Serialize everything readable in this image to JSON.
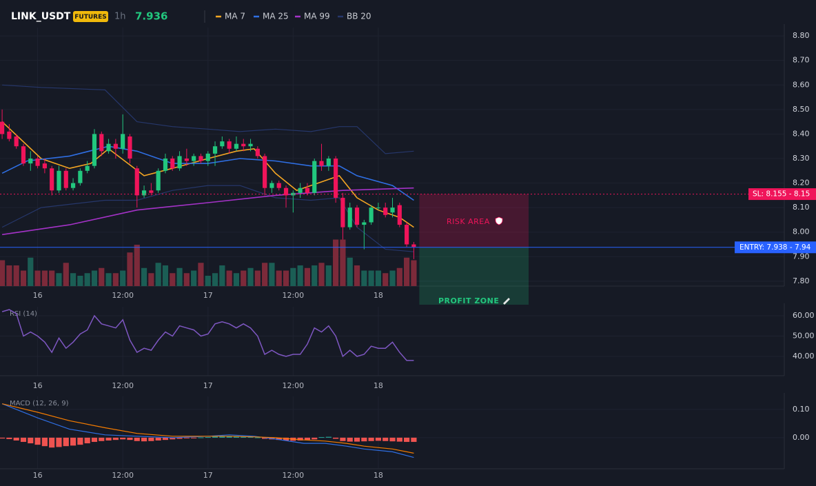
{
  "chart_data": [
    {
      "type": "candlestick",
      "symbol": "LINK_USDT",
      "market": "FUTURES",
      "interval": "1h",
      "last_price": 7.936,
      "xlim": [
        -0.3,
        110.2
      ],
      "xticks": [
        {
          "value": 5,
          "label": "16"
        },
        {
          "value": 17,
          "label": "12:00"
        },
        {
          "value": 29,
          "label": "17"
        },
        {
          "value": 41,
          "label": "12:00"
        },
        {
          "value": 53,
          "label": "18"
        }
      ],
      "ylim": [
        7.78,
        8.834
      ],
      "yticks": [
        {
          "value": 8.8,
          "label": "8.80"
        },
        {
          "value": 8.7,
          "label": "8.70"
        },
        {
          "value": 8.6,
          "label": "8.60"
        },
        {
          "value": 8.5,
          "label": "8.50"
        },
        {
          "value": 8.4,
          "label": "8.40"
        },
        {
          "value": 8.3,
          "label": "8.30"
        },
        {
          "value": 8.2,
          "label": "8.20"
        },
        {
          "value": 8.1,
          "label": "8.10"
        },
        {
          "value": 8,
          "label": "8.00"
        },
        {
          "value": 7.9,
          "label": "7.90"
        },
        {
          "value": 7.8,
          "label": "7.80"
        }
      ],
      "grid": true,
      "up_color": "#22c77e",
      "down_color": "#f0145a",
      "open": [
        8.45,
        8.41,
        8.39,
        8.35,
        8.28,
        8.3,
        8.28,
        8.26,
        8.17,
        8.25,
        8.18,
        8.2,
        8.25,
        8.27,
        8.4,
        8.33,
        8.36,
        8.34,
        8.39,
        8.26,
        8.15,
        8.17,
        8.17,
        8.25,
        8.3,
        8.26,
        8.3,
        8.29,
        8.31,
        8.29,
        8.32,
        8.35,
        8.37,
        8.34,
        8.36,
        8.35,
        8.34,
        8.31,
        8.18,
        8.2,
        8.18,
        8.15,
        8.16,
        8.18,
        8.16,
        8.29,
        8.27,
        8.3,
        8.14,
        8.02,
        8.1,
        8.03,
        8.04,
        8.1,
        8.1,
        8.08,
        8.11,
        8.03,
        7.95
      ],
      "high": [
        8.5,
        8.44,
        8.4,
        8.36,
        8.33,
        8.31,
        8.3,
        8.27,
        8.27,
        8.26,
        8.22,
        8.26,
        8.29,
        8.42,
        8.41,
        8.38,
        8.38,
        8.48,
        8.4,
        8.27,
        8.19,
        8.2,
        8.26,
        8.32,
        8.31,
        8.33,
        8.34,
        8.32,
        8.32,
        8.33,
        8.37,
        8.39,
        8.38,
        8.39,
        8.38,
        8.38,
        8.35,
        8.32,
        8.21,
        8.21,
        8.19,
        8.17,
        8.2,
        8.2,
        8.3,
        8.36,
        8.31,
        8.31,
        8.16,
        8.12,
        8.11,
        8.05,
        8.11,
        8.12,
        8.12,
        8.14,
        8.12,
        8.04,
        7.96
      ],
      "low": [
        8.38,
        8.37,
        8.34,
        8.27,
        8.25,
        8.26,
        8.24,
        8.15,
        8.16,
        8.17,
        8.17,
        8.19,
        8.24,
        8.26,
        8.31,
        8.32,
        8.3,
        8.32,
        8.28,
        8.1,
        8.14,
        8.15,
        8.16,
        8.24,
        8.25,
        8.25,
        8.27,
        8.27,
        8.28,
        8.27,
        8.27,
        8.34,
        8.32,
        8.33,
        8.33,
        8.33,
        8.3,
        8.15,
        8.16,
        8.17,
        8.1,
        8.08,
        8.14,
        8.15,
        8.15,
        8.25,
        8.25,
        8.12,
        7.97,
        8.01,
        8.02,
        7.93,
        8.03,
        8.09,
        8.06,
        8.06,
        8.02,
        7.94,
        7.89
      ],
      "close": [
        8.4,
        8.38,
        8.35,
        8.28,
        8.3,
        8.27,
        8.26,
        8.17,
        8.25,
        8.18,
        8.2,
        8.25,
        8.27,
        8.4,
        8.33,
        8.36,
        8.34,
        8.4,
        8.3,
        8.15,
        8.17,
        8.16,
        8.25,
        8.3,
        8.26,
        8.31,
        8.29,
        8.31,
        8.29,
        8.32,
        8.35,
        8.37,
        8.34,
        8.36,
        8.35,
        8.36,
        8.31,
        8.18,
        8.2,
        8.18,
        8.15,
        8.16,
        8.18,
        8.16,
        8.29,
        8.27,
        8.3,
        8.14,
        8.02,
        8.1,
        8.03,
        8.04,
        8.1,
        8.1,
        8.07,
        8.1,
        8.03,
        7.95,
        7.94
      ],
      "volume": {
        "ylim": [
          0,
          100
        ],
        "up_color": "#1b5e55",
        "down_color": "#7c2a3a",
        "values": [
          50,
          40,
          40,
          30,
          55,
          30,
          30,
          30,
          25,
          45,
          25,
          20,
          25,
          30,
          35,
          25,
          25,
          30,
          65,
          80,
          35,
          25,
          45,
          40,
          25,
          35,
          25,
          30,
          45,
          20,
          25,
          40,
          30,
          25,
          30,
          35,
          30,
          45,
          45,
          30,
          30,
          35,
          40,
          35,
          40,
          45,
          40,
          90,
          90,
          55,
          40,
          30,
          30,
          30,
          25,
          30,
          35,
          55,
          50
        ]
      },
      "series": [
        {
          "name": "MA 7",
          "color": "#f5a623",
          "x": [
            0,
            5.5,
            9.5,
            12.5,
            15,
            20,
            24,
            29,
            33,
            35.5,
            38.5,
            41.5,
            44.5,
            47.5,
            50,
            53,
            56,
            58
          ],
          "values": [
            8.45,
            8.3,
            8.26,
            8.28,
            8.34,
            8.23,
            8.26,
            8.3,
            8.33,
            8.34,
            8.24,
            8.17,
            8.2,
            8.23,
            8.14,
            8.09,
            8.06,
            8.02
          ]
        },
        {
          "name": "MA 25",
          "color": "#2f6fe4",
          "x": [
            0,
            3.5,
            9.5,
            15,
            19,
            24,
            29,
            33.5,
            38.5,
            43.5,
            47.5,
            50,
            55,
            58
          ],
          "values": [
            8.24,
            8.29,
            8.31,
            8.35,
            8.33,
            8.28,
            8.28,
            8.3,
            8.29,
            8.27,
            8.27,
            8.23,
            8.19,
            8.13
          ]
        },
        {
          "name": "MA 99",
          "color": "#a532c8",
          "x": [
            0,
            9.5,
            19,
            29,
            38.5,
            48,
            58
          ],
          "values": [
            7.99,
            8.03,
            8.09,
            8.12,
            8.15,
            8.17,
            8.18
          ]
        }
      ],
      "bands": [
        {
          "name": "BB 20",
          "color": "#26376b",
          "x": [
            0,
            5.5,
            14.5,
            19,
            24,
            29,
            33.5,
            38.5,
            43.5,
            47.5,
            50,
            54,
            58
          ],
          "upper": [
            8.6,
            8.59,
            8.58,
            8.45,
            8.43,
            8.42,
            8.41,
            8.42,
            8.41,
            8.43,
            8.43,
            8.32,
            8.33
          ],
          "lower": [
            8.02,
            8.1,
            8.13,
            8.13,
            8.17,
            8.19,
            8.19,
            8.14,
            8.13,
            8.14,
            8.02,
            7.93,
            7.92
          ]
        }
      ],
      "annotations": {
        "stop_loss": {
          "value": 8.155,
          "label": "SL: 8.155 - 8.15",
          "color": "#f0145a"
        },
        "entry": {
          "value": 7.938,
          "label": "ENTRY: 7.938 - 7.94",
          "color": "#2962ff"
        },
        "risk_area": {
          "text": "RISK AREA",
          "color": "#f0145a"
        },
        "profit_zone": {
          "text": "PROFIT ZONE",
          "color": "#22c77e"
        }
      }
    },
    {
      "type": "line",
      "title": "RSI (14)",
      "xlim": [
        -0.3,
        110.2
      ],
      "xticks": [
        {
          "value": 5,
          "label": "16"
        },
        {
          "value": 17,
          "label": "12:00"
        },
        {
          "value": 29,
          "label": "17"
        },
        {
          "value": 41,
          "label": "12:00"
        },
        {
          "value": 53,
          "label": "18"
        }
      ],
      "ylim": [
        30.5,
        64.4
      ],
      "yticks": [
        {
          "value": 60,
          "label": "60.00"
        },
        {
          "value": 50,
          "label": "50.00"
        },
        {
          "value": 40,
          "label": "40.00"
        }
      ],
      "series": [
        {
          "color": "#7e57c2",
          "values": [
            62,
            63,
            61,
            50,
            52,
            50,
            47,
            42,
            49,
            44,
            47,
            51,
            53,
            60,
            56,
            55,
            54,
            58,
            48,
            42,
            44,
            43,
            48,
            52,
            50,
            55,
            54,
            53,
            50,
            51,
            56,
            57,
            56,
            54,
            56,
            54,
            50,
            41,
            43,
            41,
            40,
            41,
            41,
            46,
            54,
            52,
            55,
            50,
            40,
            43,
            40,
            41,
            45,
            44,
            44,
            47,
            42,
            38,
            38
          ]
        }
      ]
    },
    {
      "type": "macd",
      "title": "MACD (12, 26, 9)",
      "xlim": [
        -0.3,
        110.2
      ],
      "xticks": [
        {
          "value": 5,
          "label": "16"
        },
        {
          "value": 17,
          "label": "12:00"
        },
        {
          "value": 29,
          "label": "17"
        },
        {
          "value": 41,
          "label": "12:00"
        },
        {
          "value": 53,
          "label": "18"
        }
      ],
      "ylim": [
        -0.11,
        0.146
      ],
      "yticks": [
        {
          "value": 0.1,
          "label": "0.10"
        },
        {
          "value": 0,
          "label": "0.00"
        }
      ],
      "histogram": {
        "up_color": "#26a69a",
        "down_color": "#ef5350",
        "values": [
          -0.003,
          -0.005,
          -0.01,
          -0.015,
          -0.02,
          -0.025,
          -0.03,
          -0.035,
          -0.033,
          -0.03,
          -0.028,
          -0.025,
          -0.02,
          -0.015,
          -0.012,
          -0.01,
          -0.008,
          -0.006,
          -0.008,
          -0.012,
          -0.013,
          -0.012,
          -0.01,
          -0.008,
          -0.006,
          -0.004,
          -0.002,
          -0.001,
          0.001,
          0.002,
          0.004,
          0.005,
          0.005,
          0.004,
          0.004,
          0.003,
          0.001,
          -0.004,
          -0.006,
          -0.008,
          -0.01,
          -0.011,
          -0.01,
          -0.009,
          -0.006,
          0.002,
          0.003,
          -0.004,
          -0.012,
          -0.014,
          -0.014,
          -0.013,
          -0.012,
          -0.011,
          -0.012,
          -0.013,
          -0.014,
          -0.015,
          -0.015
        ]
      },
      "series": [
        {
          "color": "#2f6fe4",
          "x": [
            0,
            5,
            9.5,
            14.5,
            19,
            24,
            29,
            32,
            35.5,
            38.5,
            42.5,
            45.5,
            48.5,
            51,
            55,
            58
          ],
          "values": [
            0.12,
            0.07,
            0.03,
            0.01,
            0.005,
            0,
            0.005,
            0.01,
            0.005,
            -0.005,
            -0.02,
            -0.02,
            -0.03,
            -0.04,
            -0.05,
            -0.07
          ]
        },
        {
          "color": "#f57c00",
          "x": [
            0,
            5,
            9.5,
            14.5,
            19,
            24,
            29,
            32,
            35.5,
            38.5,
            42.5,
            45.5,
            48.5,
            51,
            55,
            58
          ],
          "values": [
            0.12,
            0.09,
            0.06,
            0.035,
            0.015,
            0.005,
            0.005,
            0.005,
            0.003,
            0,
            -0.008,
            -0.012,
            -0.02,
            -0.03,
            -0.04,
            -0.055
          ]
        }
      ]
    }
  ]
}
